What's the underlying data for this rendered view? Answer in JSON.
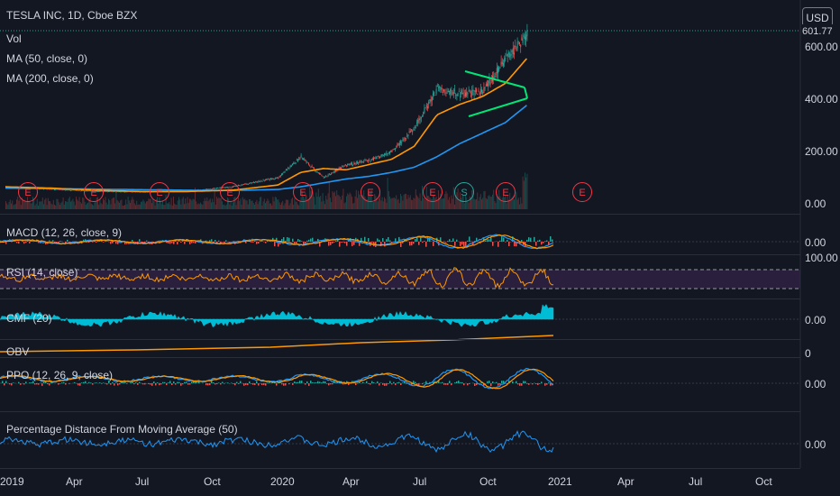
{
  "header": {
    "symbol_line": "TESLA INC, 1D, Cboe BZX",
    "indicators": [
      "Vol",
      "MA (50, close, 0)",
      "MA (200, close, 0)"
    ]
  },
  "currency_button": "USD",
  "last_price": "601.77",
  "price_axis": [
    "600.00",
    "400.00",
    "200.00",
    "0.00"
  ],
  "panes": {
    "macd": {
      "label": "MACD (12, 26, close, 9)",
      "axis": "0.00"
    },
    "rsi": {
      "label": "RSI (14, close)",
      "axis": "100.00"
    },
    "cmf": {
      "label": "CMF (20)",
      "axis": "0.00"
    },
    "obv": {
      "label": "OBV",
      "axis": "0"
    },
    "ppo": {
      "label": "PPO (12, 26, 9, close)",
      "axis": "0.00"
    },
    "pdma": {
      "label": "Percentage Distance From Moving Average (50)",
      "axis": "0.00"
    }
  },
  "time_axis": [
    "2019",
    "Apr",
    "Jul",
    "Oct",
    "2020",
    "Apr",
    "Jul",
    "Oct",
    "2021",
    "Apr",
    "Jul",
    "Oct"
  ],
  "events": [
    {
      "letter": "E",
      "date": "2019-01"
    },
    {
      "letter": "E",
      "date": "2019-04"
    },
    {
      "letter": "E",
      "date": "2019-07"
    },
    {
      "letter": "E",
      "date": "2019-10"
    },
    {
      "letter": "E",
      "date": "2020-01"
    },
    {
      "letter": "E",
      "date": "2020-04"
    },
    {
      "letter": "E",
      "date": "2020-07"
    },
    {
      "letter": "S",
      "date": "2020-08"
    },
    {
      "letter": "E",
      "date": "2020-10"
    },
    {
      "letter": "E",
      "date": "2021-01"
    }
  ],
  "colors": {
    "background": "#131722",
    "ma50": "#ff9800",
    "ma200": "#2196f3",
    "up": "#26a69a",
    "down": "#ef5350",
    "triangle": "#00e676",
    "rsi_band": "#2a1f3d",
    "cmf_fill": "#00bcd4",
    "rsi_line": "#ff9800"
  },
  "chart_data": {
    "type": "line",
    "title": "TESLA INC, 1D, Cboe BZX",
    "x": [
      "2019-01",
      "2019-03",
      "2019-05",
      "2019-07",
      "2019-09",
      "2019-11",
      "2020-01",
      "2020-02",
      "2020-03",
      "2020-04",
      "2020-05",
      "2020-06",
      "2020-07",
      "2020-08",
      "2020-09",
      "2020-10",
      "2020-11",
      "2020-12"
    ],
    "series": [
      {
        "name": "close",
        "values": [
          66,
          56,
          48,
          46,
          48,
          66,
          100,
          180,
          100,
          150,
          165,
          200,
          290,
          440,
          420,
          430,
          550,
          650
        ]
      },
      {
        "name": "MA (50, close, 0)",
        "values": [
          65,
          60,
          52,
          47,
          47,
          52,
          72,
          120,
          135,
          130,
          150,
          170,
          220,
          340,
          380,
          410,
          460,
          560
        ]
      },
      {
        "name": "MA (200, close, 0)",
        "values": [
          60,
          58,
          56,
          54,
          52,
          51,
          55,
          65,
          80,
          95,
          105,
          120,
          140,
          180,
          230,
          270,
          310,
          380
        ]
      }
    ],
    "ylim": [
      0,
      680
    ],
    "y_ticks": [
      "600.00",
      "400.00",
      "200.00",
      "0.00"
    ],
    "x_ticks": [
      "2019",
      "Apr",
      "Jul",
      "Oct",
      "2020",
      "Apr",
      "Jul",
      "Oct",
      "2021",
      "Apr",
      "Jul",
      "Oct"
    ],
    "grid": false
  }
}
